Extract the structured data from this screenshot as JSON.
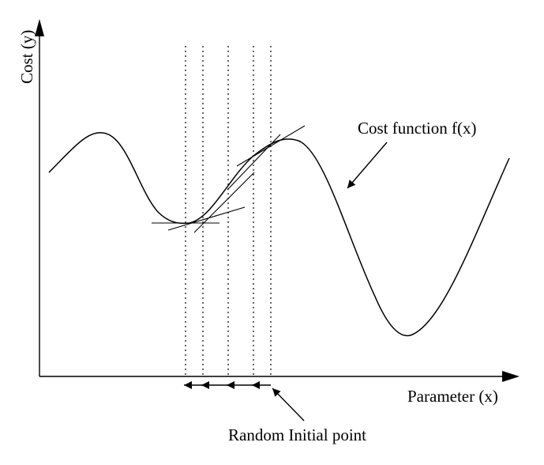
{
  "axes": {
    "y_label": "Cost (y)",
    "x_label": "Parameter (x)"
  },
  "annotations": {
    "cost_function": "Cost function f(x)",
    "initial_point": "Random Initial point"
  },
  "colors": {
    "stroke": "#000000",
    "background": "#ffffff"
  },
  "descent_steps": 4
}
